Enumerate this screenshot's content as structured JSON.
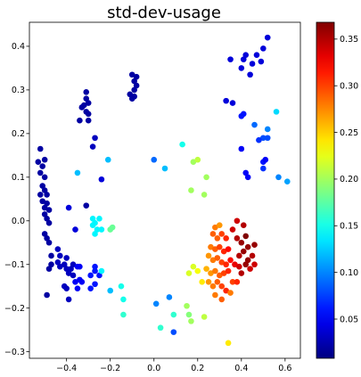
{
  "chart_data": {
    "type": "scatter",
    "title": "std-dev-usage",
    "xlabel": "",
    "ylabel": "",
    "xlim": [
      -0.57,
      0.67
    ],
    "ylim": [
      -0.315,
      0.455
    ],
    "xticks": [
      -0.4,
      -0.2,
      0.0,
      0.2,
      0.4,
      0.6
    ],
    "xtick_labels": [
      "−0.4",
      "−0.2",
      "0.0",
      "0.2",
      "0.4",
      "0.6"
    ],
    "yticks": [
      -0.3,
      -0.2,
      -0.1,
      0.0,
      0.1,
      0.2,
      0.3,
      0.4
    ],
    "ytick_labels": [
      "−0.3",
      "−0.2",
      "−0.1",
      "0.0",
      "0.1",
      "0.2",
      "0.3",
      "0.4"
    ],
    "grid": false,
    "colormap": "jet",
    "colorbar": {
      "min": 0.008,
      "max": 0.368,
      "ticks": [
        0.05,
        0.1,
        0.15,
        0.2,
        0.25,
        0.3,
        0.35
      ],
      "tick_labels": [
        "0.05",
        "0.10",
        "0.15",
        "0.20",
        "0.25",
        "0.30",
        "0.35"
      ]
    },
    "points": [
      {
        "x": -0.52,
        "y": 0.165,
        "c": 0.02
      },
      {
        "x": -0.53,
        "y": 0.135,
        "c": 0.02
      },
      {
        "x": -0.51,
        "y": 0.125,
        "c": 0.02
      },
      {
        "x": -0.5,
        "y": 0.14,
        "c": 0.02
      },
      {
        "x": -0.52,
        "y": 0.11,
        "c": 0.02
      },
      {
        "x": -0.5,
        "y": 0.1,
        "c": 0.02
      },
      {
        "x": -0.51,
        "y": 0.08,
        "c": 0.02
      },
      {
        "x": -0.5,
        "y": 0.07,
        "c": 0.02
      },
      {
        "x": -0.52,
        "y": 0.06,
        "c": 0.02
      },
      {
        "x": -0.49,
        "y": 0.06,
        "c": 0.02
      },
      {
        "x": -0.51,
        "y": 0.045,
        "c": 0.02
      },
      {
        "x": -0.49,
        "y": 0.04,
        "c": 0.02
      },
      {
        "x": -0.5,
        "y": 0.03,
        "c": 0.02
      },
      {
        "x": -0.48,
        "y": 0.025,
        "c": 0.02
      },
      {
        "x": -0.5,
        "y": 0.015,
        "c": 0.02
      },
      {
        "x": -0.49,
        "y": 0.005,
        "c": 0.02
      },
      {
        "x": -0.48,
        "y": -0.005,
        "c": 0.02
      },
      {
        "x": -0.5,
        "y": -0.03,
        "c": 0.02
      },
      {
        "x": -0.49,
        "y": -0.04,
        "c": 0.02
      },
      {
        "x": -0.48,
        "y": -0.05,
        "c": 0.02
      },
      {
        "x": -0.47,
        "y": -0.08,
        "c": 0.02
      },
      {
        "x": -0.47,
        "y": -0.1,
        "c": 0.02
      },
      {
        "x": -0.48,
        "y": -0.11,
        "c": 0.02
      },
      {
        "x": -0.49,
        "y": -0.17,
        "c": 0.02
      },
      {
        "x": -0.44,
        "y": -0.065,
        "c": 0.03
      },
      {
        "x": -0.43,
        "y": -0.08,
        "c": 0.03
      },
      {
        "x": -0.44,
        "y": -0.095,
        "c": 0.03
      },
      {
        "x": -0.43,
        "y": -0.105,
        "c": 0.03
      },
      {
        "x": -0.41,
        "y": -0.1,
        "c": 0.03
      },
      {
        "x": -0.4,
        "y": -0.11,
        "c": 0.03
      },
      {
        "x": -0.38,
        "y": -0.11,
        "c": 0.03
      },
      {
        "x": -0.4,
        "y": -0.085,
        "c": 0.03
      },
      {
        "x": -0.37,
        "y": -0.1,
        "c": 0.03
      },
      {
        "x": -0.39,
        "y": -0.12,
        "c": 0.03
      },
      {
        "x": -0.37,
        "y": -0.125,
        "c": 0.03
      },
      {
        "x": -0.41,
        "y": -0.15,
        "c": 0.03
      },
      {
        "x": -0.4,
        "y": -0.155,
        "c": 0.03
      },
      {
        "x": -0.39,
        "y": -0.18,
        "c": 0.03
      },
      {
        "x": -0.35,
        "y": -0.105,
        "c": 0.05
      },
      {
        "x": -0.34,
        "y": -0.105,
        "c": 0.05
      },
      {
        "x": -0.34,
        "y": -0.135,
        "c": 0.05
      },
      {
        "x": -0.35,
        "y": -0.155,
        "c": 0.05
      },
      {
        "x": -0.33,
        "y": -0.14,
        "c": 0.05
      },
      {
        "x": -0.36,
        "y": -0.14,
        "c": 0.05
      },
      {
        "x": -0.29,
        "y": -0.125,
        "c": 0.06
      },
      {
        "x": -0.27,
        "y": -0.105,
        "c": 0.06
      },
      {
        "x": -0.27,
        "y": -0.115,
        "c": 0.06
      },
      {
        "x": -0.29,
        "y": -0.155,
        "c": 0.06
      },
      {
        "x": -0.25,
        "y": -0.125,
        "c": 0.06
      },
      {
        "x": -0.27,
        "y": -0.145,
        "c": 0.06
      },
      {
        "x": -0.39,
        "y": 0.03,
        "c": 0.04
      },
      {
        "x": -0.36,
        "y": -0.02,
        "c": 0.04
      },
      {
        "x": -0.31,
        "y": 0.035,
        "c": 0.02
      },
      {
        "x": -0.34,
        "y": 0.23,
        "c": 0.02
      },
      {
        "x": -0.32,
        "y": 0.265,
        "c": 0.02
      },
      {
        "x": -0.31,
        "y": 0.28,
        "c": 0.02
      },
      {
        "x": -0.3,
        "y": 0.27,
        "c": 0.02
      },
      {
        "x": -0.31,
        "y": 0.295,
        "c": 0.02
      },
      {
        "x": -0.31,
        "y": 0.25,
        "c": 0.02
      },
      {
        "x": -0.3,
        "y": 0.245,
        "c": 0.02
      },
      {
        "x": -0.3,
        "y": 0.23,
        "c": 0.02
      },
      {
        "x": -0.33,
        "y": 0.26,
        "c": 0.02
      },
      {
        "x": -0.28,
        "y": 0.17,
        "c": 0.03
      },
      {
        "x": -0.27,
        "y": 0.19,
        "c": 0.03
      },
      {
        "x": -0.24,
        "y": 0.095,
        "c": 0.04
      },
      {
        "x": -0.35,
        "y": 0.11,
        "c": 0.12
      },
      {
        "x": -0.21,
        "y": 0.14,
        "c": 0.12
      },
      {
        "x": -0.28,
        "y": 0.005,
        "c": 0.14
      },
      {
        "x": -0.27,
        "y": -0.005,
        "c": 0.14
      },
      {
        "x": -0.25,
        "y": 0.005,
        "c": 0.14
      },
      {
        "x": -0.26,
        "y": -0.02,
        "c": 0.14
      },
      {
        "x": -0.28,
        "y": -0.01,
        "c": 0.14
      },
      {
        "x": -0.27,
        "y": -0.03,
        "c": 0.14
      },
      {
        "x": -0.24,
        "y": -0.02,
        "c": 0.14
      },
      {
        "x": -0.2,
        "y": -0.02,
        "c": 0.18
      },
      {
        "x": -0.19,
        "y": -0.015,
        "c": 0.18
      },
      {
        "x": -0.24,
        "y": -0.115,
        "c": 0.14
      },
      {
        "x": -0.2,
        "y": -0.16,
        "c": 0.12
      },
      {
        "x": -0.15,
        "y": -0.15,
        "c": 0.15
      },
      {
        "x": -0.14,
        "y": -0.18,
        "c": 0.15
      },
      {
        "x": -0.14,
        "y": -0.215,
        "c": 0.16
      },
      {
        "x": -0.1,
        "y": 0.335,
        "c": 0.02
      },
      {
        "x": -0.09,
        "y": 0.32,
        "c": 0.02
      },
      {
        "x": -0.08,
        "y": 0.33,
        "c": 0.02
      },
      {
        "x": -0.09,
        "y": 0.3,
        "c": 0.02
      },
      {
        "x": -0.11,
        "y": 0.29,
        "c": 0.02
      },
      {
        "x": -0.1,
        "y": 0.28,
        "c": 0.02
      },
      {
        "x": -0.08,
        "y": 0.31,
        "c": 0.02
      },
      {
        "x": -0.09,
        "y": 0.285,
        "c": 0.02
      },
      {
        "x": 0.0,
        "y": 0.14,
        "c": 0.09
      },
      {
        "x": 0.05,
        "y": 0.12,
        "c": 0.12
      },
      {
        "x": 0.13,
        "y": 0.175,
        "c": 0.15
      },
      {
        "x": 0.01,
        "y": -0.19,
        "c": 0.1
      },
      {
        "x": 0.07,
        "y": -0.175,
        "c": 0.1
      },
      {
        "x": 0.09,
        "y": -0.255,
        "c": 0.08
      },
      {
        "x": 0.03,
        "y": -0.245,
        "c": 0.16
      },
      {
        "x": 0.09,
        "y": -0.215,
        "c": 0.16
      },
      {
        "x": 0.18,
        "y": 0.135,
        "c": 0.2
      },
      {
        "x": 0.2,
        "y": 0.14,
        "c": 0.21
      },
      {
        "x": 0.24,
        "y": 0.1,
        "c": 0.2
      },
      {
        "x": 0.17,
        "y": 0.07,
        "c": 0.2
      },
      {
        "x": 0.23,
        "y": 0.06,
        "c": 0.2
      },
      {
        "x": 0.15,
        "y": -0.195,
        "c": 0.2
      },
      {
        "x": 0.16,
        "y": -0.215,
        "c": 0.19
      },
      {
        "x": 0.17,
        "y": -0.23,
        "c": 0.2
      },
      {
        "x": 0.23,
        "y": -0.22,
        "c": 0.21
      },
      {
        "x": 0.18,
        "y": -0.105,
        "c": 0.22
      },
      {
        "x": 0.16,
        "y": -0.12,
        "c": 0.22
      },
      {
        "x": 0.2,
        "y": -0.115,
        "c": 0.23
      },
      {
        "x": 0.34,
        "y": -0.28,
        "c": 0.24
      },
      {
        "x": 0.28,
        "y": -0.015,
        "c": 0.28
      },
      {
        "x": 0.3,
        "y": -0.01,
        "c": 0.27
      },
      {
        "x": 0.27,
        "y": -0.03,
        "c": 0.29
      },
      {
        "x": 0.29,
        "y": -0.04,
        "c": 0.29
      },
      {
        "x": 0.31,
        "y": -0.03,
        "c": 0.3
      },
      {
        "x": 0.33,
        "y": -0.04,
        "c": 0.31
      },
      {
        "x": 0.26,
        "y": -0.06,
        "c": 0.28
      },
      {
        "x": 0.28,
        "y": -0.065,
        "c": 0.29
      },
      {
        "x": 0.3,
        "y": -0.06,
        "c": 0.3
      },
      {
        "x": 0.32,
        "y": -0.07,
        "c": 0.31
      },
      {
        "x": 0.34,
        "y": -0.065,
        "c": 0.32
      },
      {
        "x": 0.25,
        "y": -0.08,
        "c": 0.27
      },
      {
        "x": 0.27,
        "y": -0.09,
        "c": 0.28
      },
      {
        "x": 0.29,
        "y": -0.085,
        "c": 0.29
      },
      {
        "x": 0.31,
        "y": -0.095,
        "c": 0.3
      },
      {
        "x": 0.33,
        "y": -0.1,
        "c": 0.31
      },
      {
        "x": 0.35,
        "y": -0.09,
        "c": 0.32
      },
      {
        "x": 0.24,
        "y": -0.11,
        "c": 0.26
      },
      {
        "x": 0.26,
        "y": -0.12,
        "c": 0.27
      },
      {
        "x": 0.28,
        "y": -0.115,
        "c": 0.28
      },
      {
        "x": 0.3,
        "y": -0.125,
        "c": 0.29
      },
      {
        "x": 0.32,
        "y": -0.12,
        "c": 0.3
      },
      {
        "x": 0.34,
        "y": -0.115,
        "c": 0.31
      },
      {
        "x": 0.25,
        "y": -0.14,
        "c": 0.27
      },
      {
        "x": 0.27,
        "y": -0.15,
        "c": 0.28
      },
      {
        "x": 0.29,
        "y": -0.14,
        "c": 0.29
      },
      {
        "x": 0.31,
        "y": -0.15,
        "c": 0.3
      },
      {
        "x": 0.33,
        "y": -0.16,
        "c": 0.31
      },
      {
        "x": 0.36,
        "y": -0.14,
        "c": 0.3
      },
      {
        "x": 0.28,
        "y": -0.17,
        "c": 0.28
      },
      {
        "x": 0.31,
        "y": -0.18,
        "c": 0.29
      },
      {
        "x": 0.35,
        "y": -0.165,
        "c": 0.28
      },
      {
        "x": 0.22,
        "y": -0.14,
        "c": 0.24
      },
      {
        "x": 0.36,
        "y": -0.02,
        "c": 0.34
      },
      {
        "x": 0.38,
        "y": -0.04,
        "c": 0.35
      },
      {
        "x": 0.4,
        "y": -0.05,
        "c": 0.36
      },
      {
        "x": 0.41,
        "y": -0.07,
        "c": 0.36
      },
      {
        "x": 0.39,
        "y": -0.08,
        "c": 0.35
      },
      {
        "x": 0.43,
        "y": -0.06,
        "c": 0.36
      },
      {
        "x": 0.45,
        "y": -0.08,
        "c": 0.35
      },
      {
        "x": 0.42,
        "y": -0.1,
        "c": 0.36
      },
      {
        "x": 0.4,
        "y": -0.12,
        "c": 0.35
      },
      {
        "x": 0.44,
        "y": -0.11,
        "c": 0.34
      },
      {
        "x": 0.37,
        "y": -0.1,
        "c": 0.33
      },
      {
        "x": 0.38,
        "y": 0.0,
        "c": 0.34
      },
      {
        "x": 0.41,
        "y": -0.01,
        "c": 0.35
      },
      {
        "x": 0.46,
        "y": -0.055,
        "c": 0.36
      },
      {
        "x": 0.42,
        "y": -0.035,
        "c": 0.37
      },
      {
        "x": 0.43,
        "y": -0.09,
        "c": 0.36
      },
      {
        "x": 0.39,
        "y": -0.105,
        "c": 0.34
      },
      {
        "x": 0.46,
        "y": -0.1,
        "c": 0.34
      },
      {
        "x": 0.38,
        "y": -0.14,
        "c": 0.31
      },
      {
        "x": 0.35,
        "y": 0.37,
        "c": 0.04
      },
      {
        "x": 0.41,
        "y": 0.37,
        "c": 0.04
      },
      {
        "x": 0.42,
        "y": 0.38,
        "c": 0.04
      },
      {
        "x": 0.4,
        "y": 0.35,
        "c": 0.04
      },
      {
        "x": 0.44,
        "y": 0.335,
        "c": 0.04
      },
      {
        "x": 0.45,
        "y": 0.36,
        "c": 0.04
      },
      {
        "x": 0.47,
        "y": 0.38,
        "c": 0.04
      },
      {
        "x": 0.5,
        "y": 0.395,
        "c": 0.04
      },
      {
        "x": 0.52,
        "y": 0.42,
        "c": 0.04
      },
      {
        "x": 0.49,
        "y": 0.365,
        "c": 0.04
      },
      {
        "x": 0.33,
        "y": 0.275,
        "c": 0.04
      },
      {
        "x": 0.36,
        "y": 0.27,
        "c": 0.04
      },
      {
        "x": 0.4,
        "y": 0.24,
        "c": 0.06
      },
      {
        "x": 0.41,
        "y": 0.245,
        "c": 0.06
      },
      {
        "x": 0.46,
        "y": 0.22,
        "c": 0.09
      },
      {
        "x": 0.5,
        "y": 0.19,
        "c": 0.08
      },
      {
        "x": 0.52,
        "y": 0.19,
        "c": 0.08
      },
      {
        "x": 0.52,
        "y": 0.21,
        "c": 0.1
      },
      {
        "x": 0.48,
        "y": 0.185,
        "c": 0.07
      },
      {
        "x": 0.4,
        "y": 0.165,
        "c": 0.05
      },
      {
        "x": 0.5,
        "y": 0.135,
        "c": 0.06
      },
      {
        "x": 0.51,
        "y": 0.14,
        "c": 0.05
      },
      {
        "x": 0.5,
        "y": 0.12,
        "c": 0.07
      },
      {
        "x": 0.43,
        "y": 0.1,
        "c": 0.05
      },
      {
        "x": 0.42,
        "y": 0.11,
        "c": 0.05
      },
      {
        "x": 0.56,
        "y": 0.25,
        "c": 0.13
      },
      {
        "x": 0.57,
        "y": 0.1,
        "c": 0.1
      },
      {
        "x": 0.61,
        "y": 0.09,
        "c": 0.11
      }
    ]
  }
}
